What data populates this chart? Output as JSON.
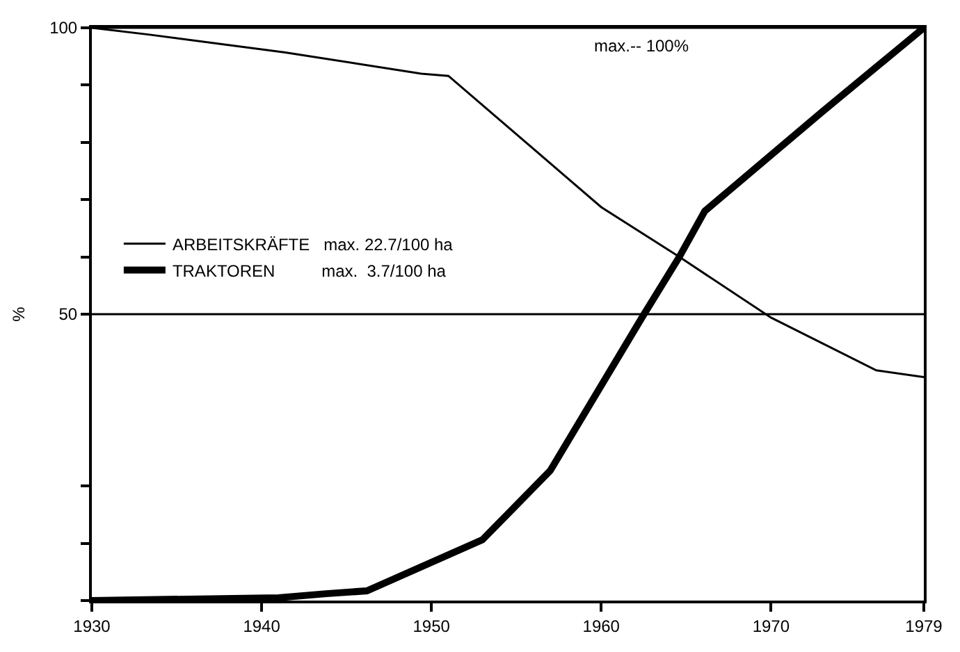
{
  "chart_data": {
    "type": "line",
    "ylabel": "%",
    "x": [
      1930,
      1933.4,
      1941.4,
      1949.4,
      1951,
      1960,
      1964.6,
      1970,
      1976.2,
      1979
    ],
    "series": [
      {
        "name": "ARBEITSKRÄFTE   max. 22.7/100 ha",
        "color": "#000000",
        "values": [
          100,
          98.8,
          95.7,
          92,
          91.6,
          68.7,
          60,
          49.4,
          40.2,
          39
        ]
      },
      {
        "name": "TRAKTOREN          max.  3.7/100 ha",
        "color": "#000000",
        "x": [
          1930,
          1941,
          1943.8,
          1946.2,
          1953,
          1957,
          1962.4,
          1964.6,
          1966.1,
          1973,
          1979
        ],
        "values": [
          0,
          0.5,
          1.2,
          1.7,
          10.6,
          22.7,
          49.4,
          60,
          68,
          85.3,
          100
        ]
      }
    ],
    "xlim": [
      1930,
      1979
    ],
    "xticks": [
      1930,
      1940,
      1950,
      1960,
      1970,
      1979
    ],
    "ylim": [
      0,
      100
    ],
    "yticks": [
      {
        "value": 0,
        "label": null
      },
      {
        "value": 10,
        "label": null
      },
      {
        "value": 20,
        "label": null
      },
      {
        "value": 50,
        "label": "50"
      },
      {
        "value": 60,
        "label": null
      },
      {
        "value": 70,
        "label": null
      },
      {
        "value": 80,
        "label": null
      },
      {
        "value": 90,
        "label": null
      },
      {
        "value": 100,
        "label": "100"
      }
    ],
    "ref_lines": [
      {
        "axis": "y",
        "value": 100,
        "label": "max.-- 100%"
      },
      {
        "axis": "y",
        "value": 50,
        "label": null
      }
    ],
    "legend": "left",
    "marker": "none",
    "line_style": "solid"
  }
}
